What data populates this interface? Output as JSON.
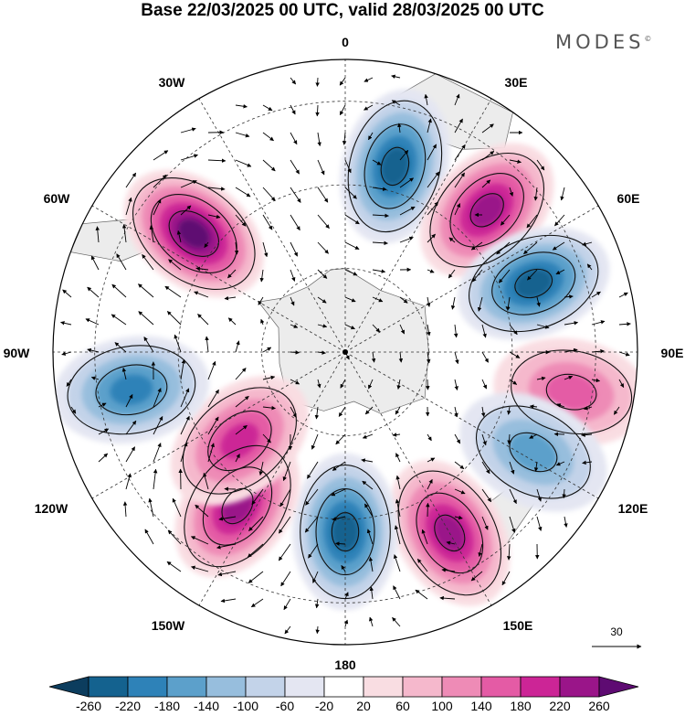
{
  "title": "Base 22/03/2025 00 UTC, valid 28/03/2025 00 UTC",
  "brand": "MODES",
  "brand_mark": "©",
  "longitude_labels": {
    "lon_0": "0",
    "lon_30e": "30E",
    "lon_60e": "60E",
    "lon_90e": "90E",
    "lon_120e": "120E",
    "lon_150e": "150E",
    "lon_180": "180",
    "lon_150w": "150W",
    "lon_120w": "120W",
    "lon_90w": "90W",
    "lon_60w": "60W",
    "lon_30w": "30W"
  },
  "reference_vector": {
    "label": "30"
  },
  "colorbar": {
    "colors": [
      "#0c3d5e",
      "#14628f",
      "#2e82b8",
      "#5ca0cb",
      "#97bedd",
      "#c3d3e9",
      "#e4e6f2",
      "#ffffff",
      "#f9dde2",
      "#f5b8cc",
      "#ee8bb6",
      "#e45ba5",
      "#cc2596",
      "#9a1589",
      "#5e0b72"
    ],
    "tick_labels": [
      "-260",
      "-220",
      "-180",
      "-140",
      "-100",
      "-60",
      "-20",
      "20",
      "60",
      "100",
      "140",
      "180",
      "220",
      "260"
    ]
  },
  "anomalies": [
    {
      "lon": 15,
      "lat": 46,
      "value": -240
    },
    {
      "lon": 45,
      "lat": 48,
      "value": 240
    },
    {
      "lon": 70,
      "lat": 48,
      "value": -240
    },
    {
      "lon": 100,
      "lat": 55,
      "value": 140
    },
    {
      "lon": 118,
      "lat": 51,
      "value": -140
    },
    {
      "lon": 150,
      "lat": 50,
      "value": 240
    },
    {
      "lon": 180,
      "lat": 43,
      "value": -220
    },
    {
      "lon": 215,
      "lat": 45,
      "value": 220
    },
    {
      "lon": 230,
      "lat": 33,
      "value": 180
    },
    {
      "lon": 260,
      "lat": 52,
      "value": -180
    },
    {
      "lon": 308,
      "lat": 46,
      "value": 260
    }
  ]
}
